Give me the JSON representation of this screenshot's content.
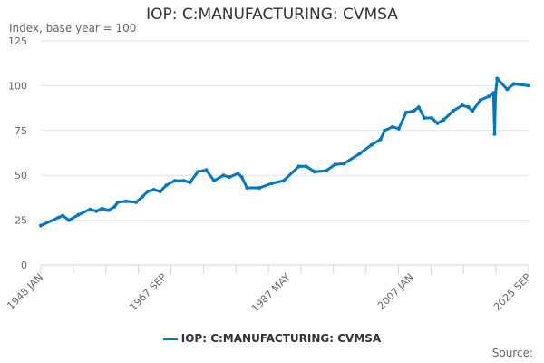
{
  "chart_data": {
    "type": "line",
    "title": "IOP: C:MANUFACTURING: CVMSA",
    "ylabel": "Index, base year = 100",
    "source_label": "Source:",
    "ylim": [
      0,
      125
    ],
    "yticks": [
      0,
      25,
      50,
      75,
      100,
      125
    ],
    "xlim": [
      "1948-01",
      "2025-09"
    ],
    "xtick_labels": [
      {
        "date": "1948-01",
        "label": "1948 JAN"
      },
      {
        "date": "1967-09",
        "label": "1967 SEP"
      },
      {
        "date": "1987-05",
        "label": "1987 MAY"
      },
      {
        "date": "2007-01",
        "label": "2007 JAN"
      },
      {
        "date": "2025-09",
        "label": "2025 SEP"
      }
    ],
    "grid": true,
    "legend_position": "bottom",
    "series": [
      {
        "name": "IOP: C:MANUFACTURING: CVMSA",
        "color": "#0077c0",
        "points": [
          [
            "1948-01",
            22
          ],
          [
            "1950-11",
            26.5
          ],
          [
            "1951-07",
            27.5
          ],
          [
            "1952-07",
            25
          ],
          [
            "1954-01",
            28
          ],
          [
            "1955-11",
            31
          ],
          [
            "1956-11",
            30
          ],
          [
            "1957-10",
            31.5
          ],
          [
            "1958-10",
            30.5
          ],
          [
            "1959-10",
            32.5
          ],
          [
            "1960-04",
            35
          ],
          [
            "1961-08",
            35.5
          ],
          [
            "1963-03",
            35
          ],
          [
            "1964-03",
            38
          ],
          [
            "1965-01",
            41
          ],
          [
            "1966-01",
            42
          ],
          [
            "1967-01",
            41
          ],
          [
            "1968-01",
            44.5
          ],
          [
            "1969-05",
            47
          ],
          [
            "1970-10",
            47
          ],
          [
            "1971-10",
            46
          ],
          [
            "1973-01",
            52
          ],
          [
            "1974-05",
            53
          ],
          [
            "1975-08",
            47
          ],
          [
            "1977-02",
            50
          ],
          [
            "1978-01",
            49
          ],
          [
            "1979-06",
            51
          ],
          [
            "1980-01",
            49
          ],
          [
            "1980-11",
            43
          ],
          [
            "1982-11",
            43
          ],
          [
            "1984-10",
            45.5
          ],
          [
            "1986-09",
            47
          ],
          [
            "1989-02",
            55
          ],
          [
            "1990-04",
            55
          ],
          [
            "1991-08",
            52
          ],
          [
            "1993-06",
            52.5
          ],
          [
            "1994-11",
            56
          ],
          [
            "1996-04",
            56.5
          ],
          [
            "1998-10",
            62
          ],
          [
            "2000-09",
            67
          ],
          [
            "2002-02",
            70
          ],
          [
            "2002-10",
            75
          ],
          [
            "2004-01",
            77
          ],
          [
            "2005-01",
            76
          ],
          [
            "2006-03",
            85
          ],
          [
            "2007-06",
            86
          ],
          [
            "2008-03",
            88
          ],
          [
            "2009-02",
            82
          ],
          [
            "2010-04",
            82
          ],
          [
            "2011-03",
            79
          ],
          [
            "2012-03",
            81
          ],
          [
            "2013-09",
            86
          ],
          [
            "2015-02",
            89
          ],
          [
            "2016-02",
            88
          ],
          [
            "2016-10",
            86
          ],
          [
            "2018-01",
            92
          ],
          [
            "2019-05",
            94
          ],
          [
            "2020-02",
            96
          ],
          [
            "2020-04",
            73
          ],
          [
            "2020-06",
            96
          ],
          [
            "2020-09",
            104
          ],
          [
            "2022-04",
            98
          ],
          [
            "2023-05",
            101
          ],
          [
            "2025-09",
            100
          ]
        ]
      }
    ]
  }
}
